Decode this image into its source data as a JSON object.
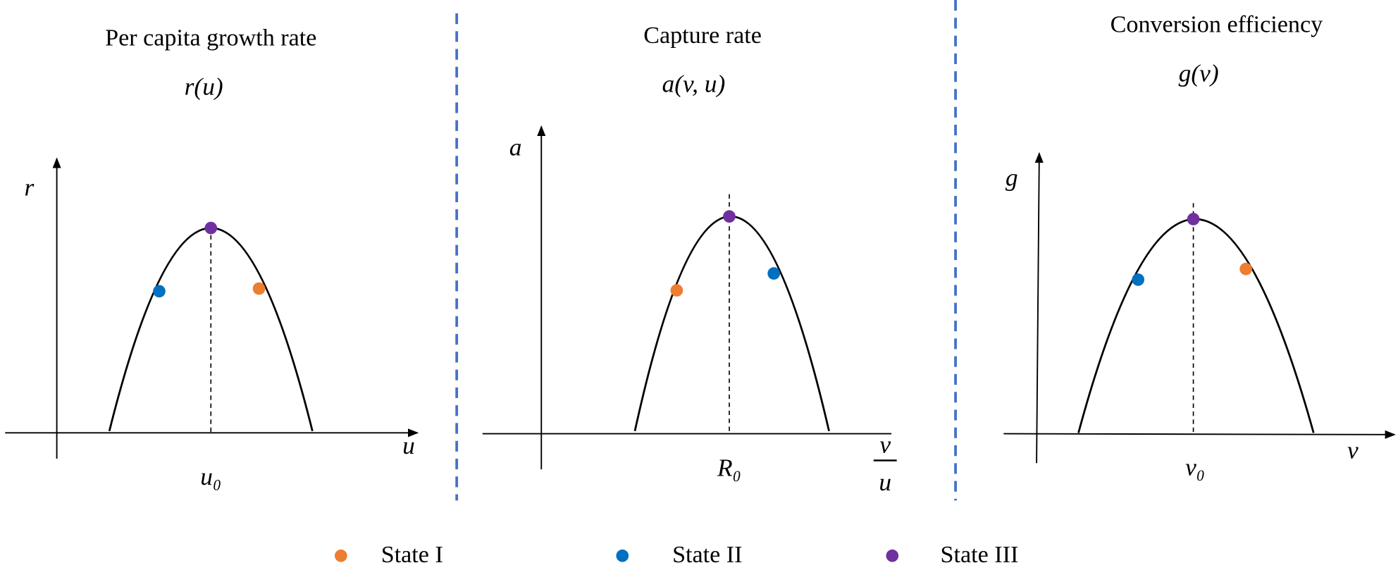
{
  "panels": [
    {
      "title": "Per capita growth rate",
      "function": "r(u)",
      "y_label": "r",
      "x_label": "u",
      "peak_label": "u₀"
    },
    {
      "title": "Capture rate",
      "function": "a(v, u)",
      "y_label": "a",
      "x_label": {
        "numerator": "v",
        "denominator": "u"
      },
      "peak_label": "R₀"
    },
    {
      "title": "Conversion efficiency",
      "function": "g(v)",
      "y_label": "g",
      "x_label": "v",
      "peak_label": "v₀"
    }
  ],
  "legend": [
    {
      "label": "State I",
      "color": "#ed7d31"
    },
    {
      "label": "State II",
      "color": "#0070c0"
    },
    {
      "label": "State III",
      "color": "#7030a0"
    }
  ]
}
